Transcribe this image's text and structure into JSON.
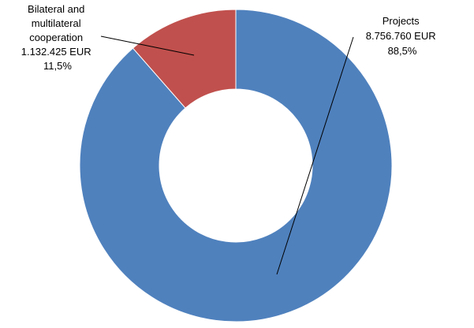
{
  "chart_data": {
    "type": "pie",
    "style": "donut",
    "title": "",
    "slices": [
      {
        "name": "Projects",
        "value": 8756760,
        "value_label": "8.756.760 EUR",
        "percent": 88.5,
        "percent_label": "88,5%",
        "color": "#4F81BD",
        "label_lines": [
          "Projects",
          "8.756.760 EUR",
          "88,5%"
        ]
      },
      {
        "name": "Bilateral and multilateral cooperation",
        "value": 1132425,
        "value_label": "1.132.425 EUR",
        "percent": 11.5,
        "percent_label": "11,5%",
        "color": "#C0504D",
        "label_lines": [
          "Bilateral and",
          "multilateral",
          "cooperation",
          "1.132.425 EUR",
          "11,5%"
        ]
      }
    ],
    "legend": "none"
  }
}
